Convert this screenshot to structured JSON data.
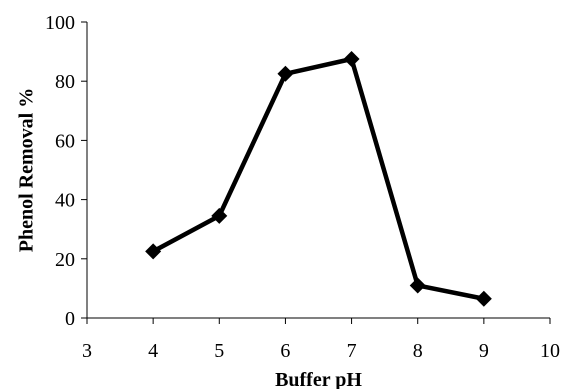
{
  "chart_data": {
    "type": "line",
    "xlabel": "Buffer pH",
    "ylabel": "Phenol Removal %",
    "xlim": [
      3,
      10
    ],
    "ylim": [
      0,
      100
    ],
    "xticks": [
      "3",
      "4",
      "5",
      "6",
      "7",
      "8",
      "9",
      "10"
    ],
    "yticks": [
      "0",
      "20",
      "40",
      "60",
      "80",
      "100"
    ],
    "grid": false,
    "marker": "diamond",
    "line_color": "#000000",
    "series": [
      {
        "x": [
          4,
          5,
          6,
          7,
          8,
          9
        ],
        "y": [
          22.5,
          34.5,
          82.5,
          87.5,
          11,
          6.5
        ]
      }
    ]
  }
}
